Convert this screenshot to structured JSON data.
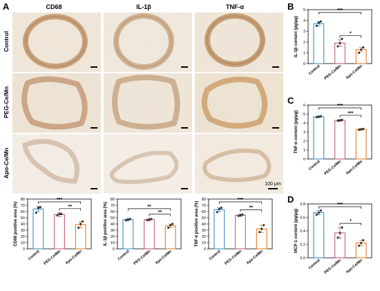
{
  "panel_letters": {
    "A": "A",
    "B": "B",
    "C": "C",
    "D": "D"
  },
  "micrograph": {
    "columns": [
      "CD68",
      "IL-1β",
      "TNF-α"
    ],
    "rows": [
      "Control",
      "PEG-Ce/Mn",
      "Apo-Ce/Mn"
    ],
    "scale_bar_label": "100 μm"
  },
  "colors": {
    "Control": "#3a8fc4",
    "PEG-Ce/Mn": "#c25b7a",
    "Apo-Ce/Mn": "#e8791f"
  },
  "chart_data": [
    {
      "id": "cd68",
      "type": "bar",
      "categories": [
        "Control",
        "PEG-Ce/Mn",
        "Apo-Ce/Mn"
      ],
      "values": [
        64,
        55,
        39
      ],
      "errors": [
        4,
        3,
        5
      ],
      "points": [
        [
          58,
          66,
          67
        ],
        [
          54,
          56,
          56
        ],
        [
          34,
          40,
          44
        ]
      ],
      "ylabel": "CD68 positive area (%)",
      "ylim": [
        0,
        80
      ],
      "yticks": [
        0,
        10,
        20,
        30,
        40,
        50,
        60,
        70,
        80
      ],
      "sig": [
        {
          "from": 0,
          "to": 2,
          "label": "***"
        },
        {
          "from": 1,
          "to": 2,
          "label": "**"
        }
      ]
    },
    {
      "id": "il1b",
      "type": "bar",
      "categories": [
        "Control",
        "PEG-Ce/Mn",
        "Apo-Ce/Mn"
      ],
      "values": [
        47,
        47,
        37
      ],
      "errors": [
        2,
        2,
        3
      ],
      "points": [
        [
          46,
          47,
          48
        ],
        [
          46,
          47,
          48
        ],
        [
          34,
          38,
          40
        ]
      ],
      "ylabel": "IL-1β positive area (%)",
      "ylim": [
        0,
        80
      ],
      "yticks": [
        0,
        10,
        20,
        30,
        40,
        50,
        60,
        70,
        80
      ],
      "sig": [
        {
          "from": 0,
          "to": 2,
          "label": "**"
        },
        {
          "from": 1,
          "to": 2,
          "label": "**"
        }
      ]
    },
    {
      "id": "tnfa",
      "type": "bar",
      "categories": [
        "Control",
        "PEG-Ce/Mn",
        "Apo-Ce/Mn"
      ],
      "values": [
        63,
        54,
        32
      ],
      "errors": [
        3,
        2,
        6
      ],
      "points": [
        [
          59,
          64,
          66
        ],
        [
          53,
          54,
          55
        ],
        [
          27,
          32,
          38
        ]
      ],
      "ylabel": "TNF-α positive area (%)",
      "ylim": [
        0,
        80
      ],
      "yticks": [
        0,
        10,
        20,
        30,
        40,
        50,
        60,
        70,
        80
      ],
      "sig": [
        {
          "from": 0,
          "to": 2,
          "label": "***"
        },
        {
          "from": 1,
          "to": 2,
          "label": "**"
        }
      ]
    },
    {
      "id": "b",
      "type": "bar",
      "categories": [
        "Control",
        "PEG-Ce/Mn",
        "Apo-Ce/Mn"
      ],
      "values": [
        3.7,
        1.9,
        1.3
      ],
      "errors": [
        0.2,
        0.3,
        0.2
      ],
      "points": [
        [
          3.5,
          3.8,
          3.9
        ],
        [
          1.6,
          1.9,
          2.3
        ],
        [
          1.0,
          1.3,
          1.5
        ]
      ],
      "ylabel": "IL-1β content (pg/μg)",
      "ylim": [
        0,
        5
      ],
      "yticks": [
        0,
        1,
        2,
        3,
        4,
        5
      ],
      "sig": [
        {
          "from": 0,
          "to": 2,
          "label": "***"
        },
        {
          "from": 1,
          "to": 2,
          "label": "*"
        }
      ]
    },
    {
      "id": "c",
      "type": "bar",
      "categories": [
        "Control",
        "PEG-Ce/Mn",
        "Apo-Ce/Mn"
      ],
      "values": [
        4.7,
        4.3,
        3.3
      ],
      "errors": [
        0.1,
        0.1,
        0.1
      ],
      "points": [
        [
          4.65,
          4.7,
          4.75
        ],
        [
          4.25,
          4.3,
          4.35
        ],
        [
          3.25,
          3.3,
          3.35
        ]
      ],
      "ylabel": "TNF-α content (pg/μg)",
      "ylim": [
        0,
        6
      ],
      "yticks": [
        0,
        1,
        2,
        3,
        4,
        5,
        6
      ],
      "sig": [
        {
          "from": 0,
          "to": 2,
          "label": "***"
        },
        {
          "from": 1,
          "to": 2,
          "label": "***"
        }
      ]
    },
    {
      "id": "d",
      "type": "bar",
      "categories": [
        "Control",
        "PEG-Ce/Mn",
        "Apo-Ce/Mn"
      ],
      "values": [
        0.67,
        0.37,
        0.22
      ],
      "errors": [
        0.03,
        0.08,
        0.04
      ],
      "points": [
        [
          0.64,
          0.67,
          0.7
        ],
        [
          0.3,
          0.37,
          0.45
        ],
        [
          0.18,
          0.22,
          0.26
        ]
      ],
      "ylabel": "MCP-1 content (pg/μg)",
      "ylim": [
        0,
        0.8
      ],
      "yticks": [
        0.0,
        0.2,
        0.4,
        0.6,
        0.8
      ],
      "sig": [
        {
          "from": 0,
          "to": 2,
          "label": "***"
        },
        {
          "from": 1,
          "to": 2,
          "label": "*"
        }
      ]
    }
  ]
}
